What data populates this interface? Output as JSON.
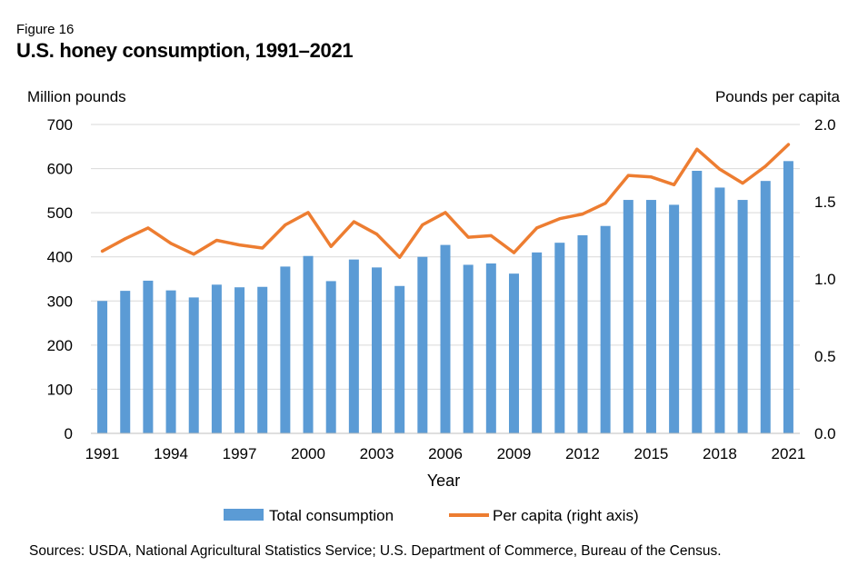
{
  "figure_label": "Figure 16",
  "title": "U.S. honey consumption, 1991–2021",
  "source_note": "Sources: USDA, National Agricultural Statistics Service; U.S. Department of Commerce, Bureau of the Census.",
  "colors": {
    "bar": "#5B9BD5",
    "line": "#ED7D31",
    "grid": "#D9D9D9"
  },
  "chart_data": {
    "type": "bar+line",
    "xlabel": "Year",
    "ylabel_left": "Million pounds",
    "ylabel_right": "Pounds per capita",
    "ylim_left": [
      0,
      700
    ],
    "ylim_right": [
      0,
      2.0
    ],
    "yticks_left": [
      "0",
      "100",
      "200",
      "300",
      "400",
      "500",
      "600",
      "700"
    ],
    "yticks_right": [
      "0.0",
      "0.5",
      "1.0",
      "1.5",
      "2.0"
    ],
    "x": [
      1991,
      1992,
      1993,
      1994,
      1995,
      1996,
      1997,
      1998,
      1999,
      2000,
      2001,
      2002,
      2003,
      2004,
      2005,
      2006,
      2007,
      2008,
      2009,
      2010,
      2011,
      2012,
      2013,
      2014,
      2015,
      2016,
      2017,
      2018,
      2019,
      2020,
      2021
    ],
    "x_tick_labels": [
      "1991",
      "1994",
      "1997",
      "2000",
      "2003",
      "2006",
      "2009",
      "2012",
      "2015",
      "2018",
      "2021"
    ],
    "grid": true,
    "legend_position": "bottom",
    "series": [
      {
        "name": "Total consumption",
        "type": "bar",
        "axis": "left",
        "values": [
          300,
          323,
          346,
          324,
          308,
          337,
          331,
          332,
          378,
          402,
          345,
          394,
          376,
          334,
          400,
          427,
          382,
          385,
          362,
          410,
          432,
          449,
          470,
          529,
          529,
          518,
          595,
          557,
          529,
          572,
          617
        ]
      },
      {
        "name": "Per capita (right axis)",
        "type": "line",
        "axis": "right",
        "values": [
          1.18,
          1.26,
          1.33,
          1.23,
          1.16,
          1.25,
          1.22,
          1.2,
          1.35,
          1.43,
          1.21,
          1.37,
          1.29,
          1.14,
          1.35,
          1.43,
          1.27,
          1.28,
          1.17,
          1.33,
          1.39,
          1.42,
          1.49,
          1.67,
          1.66,
          1.61,
          1.84,
          1.71,
          1.62,
          1.73,
          1.87
        ]
      }
    ]
  }
}
